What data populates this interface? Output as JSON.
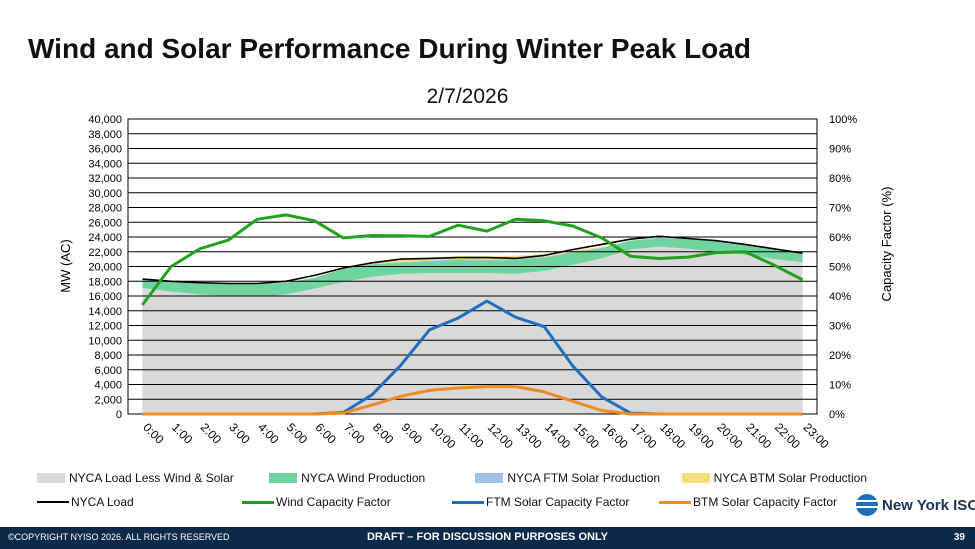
{
  "slide": {
    "title": "Wind and Solar Performance During Winter Peak Load",
    "copyright": "©COPYRIGHT NYISO 2026. ALL RIGHTS RESERVED",
    "draft_note": "DRAFT – FOR DISCUSSION PURPOSES ONLY",
    "page_number": "39",
    "logo_text": "New York ISO"
  },
  "chart_data": {
    "type": "area",
    "title": "2/7/2026",
    "ylabel": "MW (AC)",
    "y2label": "Capacity Factor (%)",
    "ylim": [
      0,
      40000
    ],
    "y2lim": [
      0,
      100
    ],
    "yticks": [
      "0",
      "2,000",
      "4,000",
      "6,000",
      "8,000",
      "10,000",
      "12,000",
      "14,000",
      "16,000",
      "18,000",
      "20,000",
      "22,000",
      "24,000",
      "26,000",
      "28,000",
      "30,000",
      "32,000",
      "34,000",
      "36,000",
      "38,000",
      "40,000"
    ],
    "y2ticks": [
      "0%",
      "10%",
      "20%",
      "30%",
      "40%",
      "50%",
      "60%",
      "70%",
      "80%",
      "90%",
      "100%"
    ],
    "grid": true,
    "legend_position": "bottom",
    "categories": [
      "0:00",
      "1:00",
      "2:00",
      "3:00",
      "4:00",
      "5:00",
      "6:00",
      "7:00",
      "8:00",
      "9:00",
      "10:00",
      "11:00",
      "12:00",
      "13:00",
      "14:00",
      "15:00",
      "16:00",
      "17:00",
      "18:00",
      "19:00",
      "20:00",
      "21:00",
      "22:00",
      "23:00"
    ],
    "stack_series": [
      {
        "name": "NYCA Load Less Wind & Solar",
        "color": "#d9d9d9",
        "values": [
          17100,
          16600,
          16200,
          16000,
          15900,
          16200,
          17000,
          17900,
          18600,
          19000,
          19100,
          19100,
          19100,
          19000,
          19400,
          20200,
          21100,
          22300,
          22700,
          22400,
          22000,
          21600,
          21000,
          20600
        ]
      },
      {
        "name": "NYCA Wind Production",
        "color": "#6fd49e",
        "values": [
          1300,
          1400,
          1500,
          1600,
          1700,
          1600,
          1500,
          1800,
          1700,
          1500,
          1600,
          1800,
          1700,
          1900,
          1800,
          1700,
          1400,
          1200,
          1200,
          1300,
          1400,
          1500,
          1300,
          1100
        ]
      },
      {
        "name": "NYCA FTM Solar Production",
        "color": "#9ec3e6",
        "values": [
          0,
          0,
          0,
          0,
          0,
          0,
          0,
          0,
          50,
          80,
          100,
          110,
          120,
          110,
          90,
          70,
          40,
          10,
          0,
          0,
          0,
          0,
          0,
          0
        ]
      },
      {
        "name": "NYCA BTM Solar Production",
        "color": "#f7dc7a",
        "values": [
          0,
          0,
          0,
          0,
          0,
          0,
          0,
          50,
          180,
          300,
          380,
          420,
          460,
          440,
          360,
          230,
          110,
          20,
          0,
          0,
          0,
          0,
          0,
          0
        ]
      }
    ],
    "line_series": [
      {
        "name": "NYCA Load",
        "axis": "left",
        "color": "#000000",
        "values": [
          18300,
          18000,
          17800,
          17700,
          17700,
          18000,
          18800,
          19800,
          20500,
          21000,
          21100,
          21200,
          21200,
          21100,
          21500,
          22300,
          23000,
          23700,
          24100,
          23800,
          23500,
          23000,
          22400,
          21800
        ]
      },
      {
        "name": "Wind Capacity Factor",
        "axis": "right",
        "color": "#21a11d",
        "values": [
          37,
          50,
          56,
          59,
          66,
          67.5,
          65.5,
          59.7,
          60.5,
          60.4,
          60.2,
          64,
          62,
          66,
          65.5,
          63.7,
          59.7,
          53.5,
          52.7,
          53.2,
          54.7,
          55,
          50.5,
          45.5
        ]
      },
      {
        "name": "FTM Solar Capacity Factor",
        "axis": "right",
        "color": "#1f6fbf",
        "values": [
          0,
          0,
          0,
          0,
          0,
          0,
          0,
          0.5,
          6.5,
          16.5,
          28.5,
          32.5,
          38.3,
          32.8,
          29.6,
          16.2,
          5.8,
          0.3,
          0,
          0,
          0,
          0,
          0,
          0
        ]
      },
      {
        "name": "BTM Solar Capacity Factor",
        "axis": "right",
        "color": "#f08a24",
        "values": [
          0,
          0,
          0,
          0,
          0,
          0,
          0,
          0.3,
          3,
          6,
          8,
          8.8,
          9.3,
          9.3,
          7.5,
          4.3,
          1.2,
          0,
          0,
          0,
          0,
          0,
          0,
          0
        ]
      }
    ]
  }
}
